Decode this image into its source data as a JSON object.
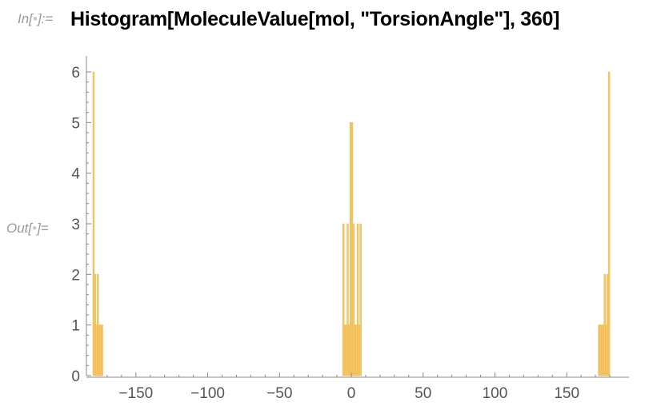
{
  "notebook": {
    "input_label_prefix": "In[",
    "input_label_suffix": "]:=",
    "output_label_prefix": "Out[",
    "output_label_suffix": "]=",
    "code": "Histogram[MoleculeValue[mol, \"TorsionAngle\"], 360]"
  },
  "colors": {
    "bar_fill": "#f6c86e",
    "bar_stroke": "#f0b84a",
    "axis": "#888888",
    "label_gray": "#9a9a9a",
    "dot": "#c8c8c8"
  },
  "chart_data": {
    "type": "bar",
    "title": "",
    "xlabel": "",
    "ylabel": "",
    "xlim": [
      -180,
      180
    ],
    "ylim": [
      0,
      6
    ],
    "bin_width": 1,
    "x_ticks": [
      -150,
      -100,
      -50,
      0,
      50,
      100,
      150
    ],
    "x_tick_labels": [
      "−150",
      "−100",
      "−50",
      "0",
      "50",
      "100",
      "150"
    ],
    "y_ticks": [
      0,
      1,
      2,
      3,
      4,
      5,
      6
    ],
    "y_tick_labels": [
      "0",
      "1",
      "2",
      "3",
      "4",
      "5",
      "6"
    ],
    "grid": false,
    "bins": [
      {
        "x": -180,
        "count": 6
      },
      {
        "x": -179,
        "count": 2
      },
      {
        "x": -178,
        "count": 1
      },
      {
        "x": -177,
        "count": 2
      },
      {
        "x": -176,
        "count": 1
      },
      {
        "x": -175,
        "count": 1
      },
      {
        "x": -174,
        "count": 1
      },
      {
        "x": -6,
        "count": 3
      },
      {
        "x": -5,
        "count": 1
      },
      {
        "x": -4,
        "count": 1
      },
      {
        "x": -3,
        "count": 3
      },
      {
        "x": -2,
        "count": 1
      },
      {
        "x": -1,
        "count": 5
      },
      {
        "x": 0,
        "count": 5
      },
      {
        "x": 1,
        "count": 3
      },
      {
        "x": 2,
        "count": 1
      },
      {
        "x": 3,
        "count": 1
      },
      {
        "x": 4,
        "count": 3
      },
      {
        "x": 5,
        "count": 1
      },
      {
        "x": 6,
        "count": 3
      },
      {
        "x": 172,
        "count": 1
      },
      {
        "x": 173,
        "count": 1
      },
      {
        "x": 174,
        "count": 1
      },
      {
        "x": 175,
        "count": 1
      },
      {
        "x": 176,
        "count": 2
      },
      {
        "x": 177,
        "count": 1
      },
      {
        "x": 178,
        "count": 2
      },
      {
        "x": 179,
        "count": 6
      }
    ]
  }
}
